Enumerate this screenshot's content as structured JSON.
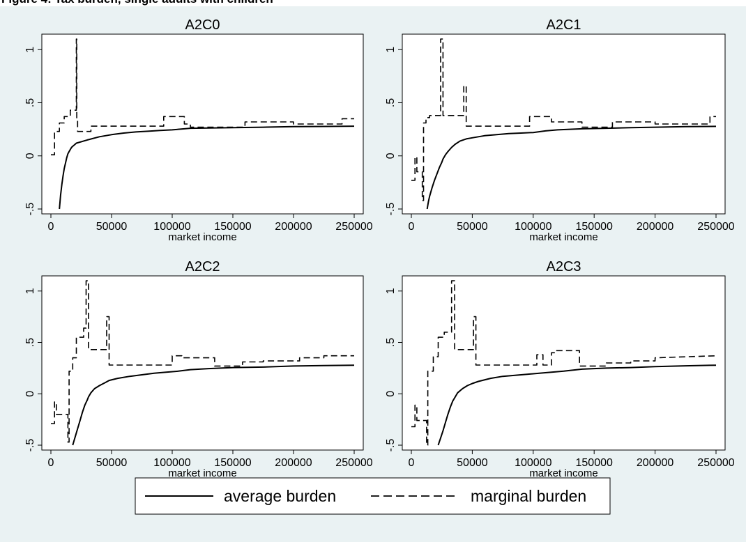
{
  "header": {
    "caption": "Figure 4: Tax burden, single adults with children"
  },
  "colors": {
    "figure_background": "#eaf2f3",
    "plot_background": "#ffffff",
    "line": "#000000"
  },
  "legend": {
    "position": "bottom-center",
    "items": [
      {
        "label": "average burden",
        "style": "solid"
      },
      {
        "label": "marginal burden",
        "style": "dashed"
      }
    ]
  },
  "chart_data": [
    {
      "type": "line",
      "title": "A2C0",
      "xlabel": "market income",
      "ylabel": "",
      "xlim": [
        0,
        250000
      ],
      "ylim": [
        -0.5,
        1.1
      ],
      "xticks": [
        0,
        50000,
        100000,
        150000,
        200000,
        250000
      ],
      "xtick_labels": [
        "0",
        "50000",
        "100000",
        "150000",
        "200000",
        "250000"
      ],
      "yticks": [
        -0.5,
        0,
        0.5,
        1
      ],
      "ytick_labels": [
        "-.5",
        "0",
        ".5",
        "1"
      ],
      "grid": false,
      "series": [
        {
          "name": "average burden",
          "style": "solid",
          "x": [
            7000,
            8000,
            9000,
            10000,
            11000,
            12000,
            13000,
            14000,
            15000,
            16000,
            17000,
            18000,
            19000,
            20000,
            21000,
            30000,
            40000,
            50000,
            60000,
            70000,
            80000,
            90000,
            100000,
            110000,
            115000,
            130000,
            150000,
            175000,
            200000,
            225000,
            250000
          ],
          "y": [
            -0.5,
            -0.37,
            -0.27,
            -0.19,
            -0.12,
            -0.07,
            -0.02,
            0.02,
            0.04,
            0.06,
            0.08,
            0.09,
            0.1,
            0.11,
            0.12,
            0.15,
            0.18,
            0.2,
            0.215,
            0.225,
            0.232,
            0.24,
            0.245,
            0.255,
            0.26,
            0.262,
            0.265,
            0.27,
            0.275,
            0.277,
            0.28
          ]
        },
        {
          "name": "marginal burden",
          "style": "dashed",
          "x": [
            0,
            3000,
            3000,
            7000,
            7000,
            11000,
            11000,
            16000,
            16000,
            21000,
            21000,
            21300,
            21300,
            22000,
            22000,
            33000,
            33000,
            93000,
            93000,
            110000,
            110000,
            115000,
            115000,
            160000,
            160000,
            200000,
            200000,
            240000,
            240000,
            250000
          ],
          "y": [
            0.01,
            0.01,
            0.23,
            0.23,
            0.31,
            0.31,
            0.37,
            0.37,
            0.43,
            0.43,
            1.1,
            1.1,
            0.33,
            0.33,
            0.23,
            0.23,
            0.28,
            0.28,
            0.37,
            0.37,
            0.3,
            0.3,
            0.27,
            0.27,
            0.32,
            0.32,
            0.3,
            0.3,
            0.35,
            0.35
          ]
        }
      ]
    },
    {
      "type": "line",
      "title": "A2C1",
      "xlabel": "market income",
      "ylabel": "",
      "xlim": [
        0,
        250000
      ],
      "ylim": [
        -0.5,
        1.1
      ],
      "xticks": [
        0,
        50000,
        100000,
        150000,
        200000,
        250000
      ],
      "xtick_labels": [
        "0",
        "50000",
        "100000",
        "150000",
        "200000",
        "250000"
      ],
      "yticks": [
        -0.5,
        0,
        0.5,
        1
      ],
      "ytick_labels": [
        "-.5",
        "0",
        ".5",
        "1"
      ],
      "grid": false,
      "series": [
        {
          "name": "average burden",
          "style": "solid",
          "x": [
            13000,
            14000,
            15000,
            17000,
            19000,
            21000,
            23000,
            25000,
            26000,
            28000,
            30000,
            33000,
            36000,
            40000,
            45000,
            50000,
            60000,
            70000,
            80000,
            90000,
            100000,
            110000,
            120000,
            140000,
            160000,
            180000,
            200000,
            225000,
            250000
          ],
          "y": [
            -0.5,
            -0.43,
            -0.38,
            -0.3,
            -0.23,
            -0.17,
            -0.11,
            -0.06,
            -0.03,
            0.01,
            0.04,
            0.08,
            0.11,
            0.14,
            0.16,
            0.17,
            0.19,
            0.2,
            0.21,
            0.215,
            0.22,
            0.235,
            0.245,
            0.255,
            0.26,
            0.265,
            0.27,
            0.275,
            0.278
          ]
        },
        {
          "name": "marginal burden",
          "style": "dashed",
          "x": [
            0,
            3000,
            3000,
            4500,
            4500,
            9000,
            9000,
            10000,
            10000,
            12000,
            12000,
            15000,
            15000,
            24000,
            24000,
            26000,
            26000,
            28000,
            28000,
            43000,
            43000,
            45000,
            45000,
            97000,
            97000,
            115000,
            115000,
            140000,
            140000,
            165000,
            165000,
            200000,
            200000,
            245000,
            245000,
            250000
          ],
          "y": [
            -0.23,
            -0.23,
            -0.01,
            -0.01,
            -0.15,
            -0.15,
            -0.42,
            -0.42,
            0.31,
            0.31,
            0.36,
            0.36,
            0.38,
            0.38,
            1.1,
            1.1,
            0.38,
            0.38,
            0.38,
            0.38,
            0.66,
            0.66,
            0.28,
            0.28,
            0.37,
            0.37,
            0.32,
            0.32,
            0.27,
            0.27,
            0.32,
            0.32,
            0.3,
            0.3,
            0.37,
            0.37
          ]
        }
      ]
    },
    {
      "type": "line",
      "title": "A2C2",
      "xlabel": "market income",
      "ylabel": "",
      "xlim": [
        0,
        250000
      ],
      "ylim": [
        -0.5,
        1.1
      ],
      "xticks": [
        0,
        50000,
        100000,
        150000,
        200000,
        250000
      ],
      "xtick_labels": [
        "0",
        "50000",
        "100000",
        "150000",
        "200000",
        "250000"
      ],
      "yticks": [
        -0.5,
        0,
        0.5,
        1
      ],
      "ytick_labels": [
        "-.5",
        "0",
        ".5",
        "1"
      ],
      "grid": false,
      "series": [
        {
          "name": "average burden",
          "style": "solid",
          "x": [
            18000,
            20000,
            22000,
            24000,
            26000,
            28000,
            30000,
            31000,
            33000,
            36000,
            40000,
            45000,
            48000,
            55000,
            65000,
            75000,
            85000,
            95000,
            105000,
            115000,
            130000,
            150000,
            175000,
            200000,
            225000,
            250000
          ],
          "y": [
            -0.5,
            -0.42,
            -0.34,
            -0.26,
            -0.18,
            -0.11,
            -0.06,
            -0.03,
            0.01,
            0.05,
            0.08,
            0.11,
            0.13,
            0.15,
            0.17,
            0.185,
            0.2,
            0.21,
            0.22,
            0.235,
            0.245,
            0.255,
            0.26,
            0.27,
            0.275,
            0.278
          ]
        },
        {
          "name": "marginal burden",
          "style": "dashed",
          "x": [
            0,
            3000,
            3000,
            4500,
            4500,
            14000,
            14000,
            15000,
            15000,
            18000,
            18000,
            21000,
            21000,
            27000,
            27000,
            29000,
            29000,
            31000,
            31000,
            46000,
            46000,
            48000,
            48000,
            100000,
            100000,
            108000,
            108000,
            135000,
            135000,
            158000,
            158000,
            175000,
            175000,
            205000,
            205000,
            225000,
            225000,
            250000
          ],
          "y": [
            -0.29,
            -0.29,
            -0.08,
            -0.08,
            -0.2,
            -0.2,
            -0.47,
            -0.47,
            0.22,
            0.22,
            0.35,
            0.35,
            0.55,
            0.55,
            0.64,
            0.64,
            1.1,
            1.1,
            0.43,
            0.43,
            0.75,
            0.75,
            0.28,
            0.28,
            0.37,
            0.37,
            0.35,
            0.35,
            0.27,
            0.27,
            0.31,
            0.31,
            0.32,
            0.32,
            0.35,
            0.35,
            0.37,
            0.37
          ]
        }
      ]
    },
    {
      "type": "line",
      "title": "A2C3",
      "xlabel": "market income",
      "ylabel": "",
      "xlim": [
        0,
        250000
      ],
      "ylim": [
        -0.5,
        1.1
      ],
      "xticks": [
        0,
        50000,
        100000,
        150000,
        200000,
        250000
      ],
      "xtick_labels": [
        "0",
        "50000",
        "100000",
        "150000",
        "200000",
        "250000"
      ],
      "yticks": [
        -0.5,
        0,
        0.5,
        1
      ],
      "ytick_labels": [
        "-.5",
        "0",
        ".5",
        "1"
      ],
      "grid": false,
      "series": [
        {
          "name": "average burden",
          "style": "solid",
          "x": [
            22000,
            24000,
            26000,
            28000,
            30000,
            32000,
            34000,
            36000,
            38000,
            42000,
            46000,
            50000,
            55000,
            65000,
            75000,
            85000,
            95000,
            105000,
            115000,
            125000,
            140000,
            160000,
            180000,
            200000,
            225000,
            250000
          ],
          "y": [
            -0.5,
            -0.43,
            -0.36,
            -0.28,
            -0.2,
            -0.13,
            -0.07,
            -0.03,
            0.01,
            0.05,
            0.08,
            0.1,
            0.12,
            0.15,
            0.17,
            0.18,
            0.19,
            0.2,
            0.21,
            0.22,
            0.24,
            0.25,
            0.255,
            0.265,
            0.272,
            0.278
          ]
        },
        {
          "name": "marginal burden",
          "style": "dashed",
          "x": [
            0,
            3000,
            3000,
            4500,
            4500,
            12500,
            12500,
            13500,
            13500,
            18000,
            18000,
            22000,
            22000,
            27000,
            27000,
            33000,
            33000,
            35500,
            35500,
            36000,
            36000,
            37000,
            37000,
            51000,
            51000,
            53000,
            53000,
            103000,
            103000,
            108000,
            108000,
            115000,
            115000,
            118000,
            118000,
            122000,
            122000,
            138000,
            138000,
            160000,
            160000,
            180000,
            180000,
            200000,
            200000,
            250000
          ],
          "y": [
            -0.32,
            -0.32,
            -0.11,
            -0.11,
            -0.26,
            -0.26,
            -0.5,
            -0.5,
            0.22,
            0.22,
            0.36,
            0.36,
            0.55,
            0.55,
            0.6,
            0.6,
            1.1,
            1.1,
            0.43,
            0.43,
            0.43,
            0.43,
            0.43,
            0.43,
            0.75,
            0.75,
            0.28,
            0.28,
            0.38,
            0.38,
            0.28,
            0.28,
            0.4,
            0.4,
            0.42,
            0.42,
            0.42,
            0.42,
            0.27,
            0.27,
            0.3,
            0.3,
            0.32,
            0.32,
            0.35,
            0.37
          ]
        }
      ]
    }
  ]
}
